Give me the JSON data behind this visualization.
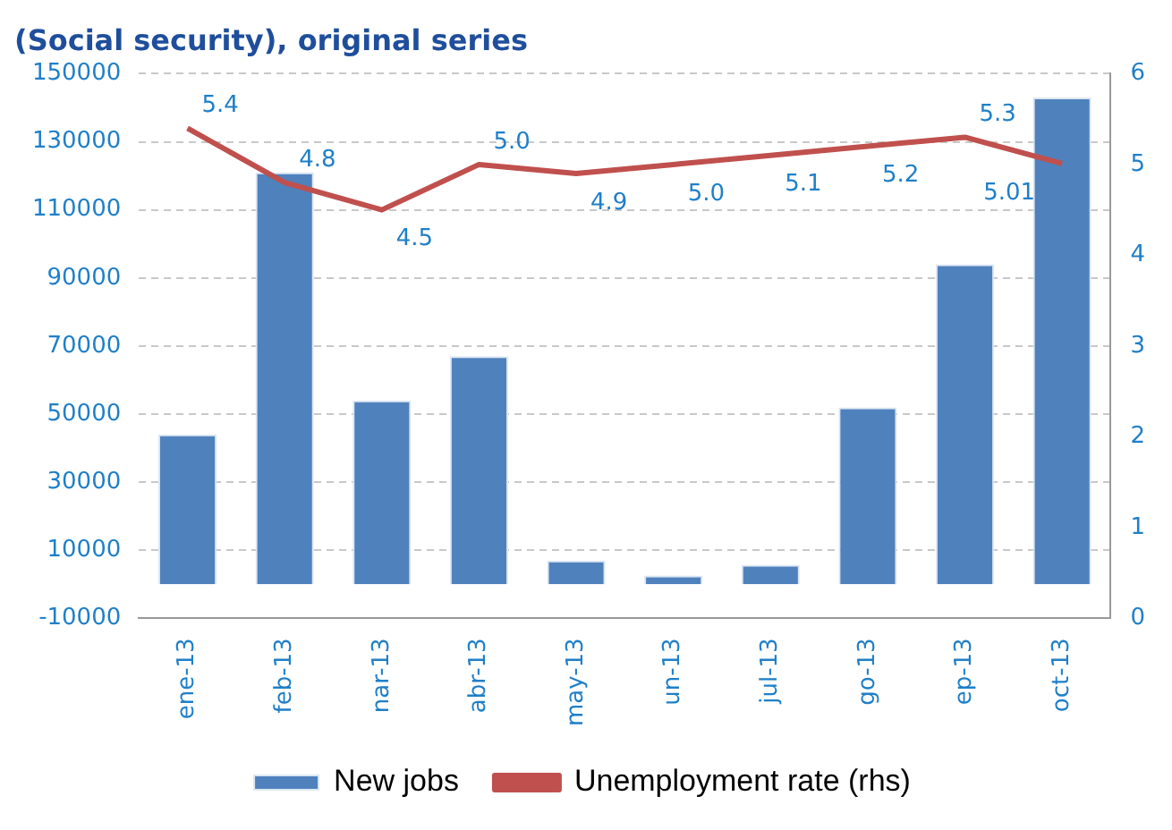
{
  "chart_data": {
    "type": "bar",
    "title": "(Social security), original series",
    "categories": [
      "ene-13",
      "feb-13",
      "nar-13",
      "abr-13",
      "may-13",
      "un-13",
      "jul-13",
      "go-13",
      "ep-13",
      "oct-13"
    ],
    "series": [
      {
        "name": "New jobs",
        "color": "#4f81bd",
        "values": [
          44000,
          121000,
          54000,
          67000,
          7000,
          2600,
          5700,
          52000,
          94000,
          143000
        ]
      },
      {
        "name": "Unemployment rate (rhs)",
        "type": "line",
        "axis": "y2",
        "color": "#c0504d",
        "values": [
          5.4,
          4.8,
          4.5,
          5.0,
          4.9,
          5.0,
          5.1,
          5.2,
          5.3,
          5.01
        ],
        "value_labels": [
          "5.4",
          "4.8",
          "4.5",
          "5.0",
          "4.9",
          "5.0",
          "5.1",
          "5.2",
          "5.3",
          "5.01"
        ]
      }
    ],
    "ylim": [
      -10000,
      150000
    ],
    "yticks": [
      -10000,
      10000,
      30000,
      50000,
      70000,
      90000,
      110000,
      130000,
      150000
    ],
    "y2lim": [
      0,
      6
    ],
    "y2ticks": [
      0,
      1,
      2,
      3,
      4,
      5,
      6
    ],
    "grid": "y",
    "legend": "bottom",
    "marker": "none"
  }
}
